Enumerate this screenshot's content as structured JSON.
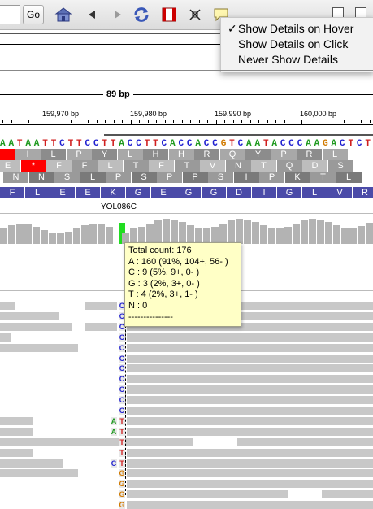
{
  "toolbar": {
    "go_label": "Go",
    "icons": [
      "home-icon",
      "back-icon",
      "forward-icon",
      "refresh-icon",
      "roi-icon",
      "resize-icon",
      "popup-text-icon",
      "region-navigator-icon"
    ]
  },
  "details_menu": {
    "items": [
      {
        "label": "Show Details on Hover",
        "checked": true,
        "check_mark": "✓"
      },
      {
        "label": "Show Details on Click",
        "checked": false
      },
      {
        "label": "Never Show Details",
        "checked": false
      }
    ]
  },
  "ruler": {
    "span_label": "89 bp",
    "ticks": [
      "159,970 bp",
      "159,980 bp",
      "159,990 bp",
      "160,000 bp"
    ]
  },
  "sequence": {
    "bases": [
      "A",
      "A",
      "T",
      "A",
      "A",
      "T",
      "T",
      "C",
      "T",
      "T",
      "C",
      "C",
      "T",
      "T",
      "A",
      "C",
      "C",
      "T",
      "T",
      "C",
      "A",
      "C",
      "C",
      "A",
      "C",
      "C",
      "G",
      "T",
      "C",
      "A",
      "A",
      "T",
      "A",
      "C",
      "C",
      "C",
      "A",
      "A",
      "G",
      "A",
      "C",
      "T",
      "C",
      "T"
    ]
  },
  "translation": {
    "frame1": [
      "",
      "I",
      "L",
      "P",
      "Y",
      "L",
      "H",
      "H",
      "R",
      "Q",
      "Y",
      "P",
      "R",
      "L"
    ],
    "frame2": [
      "E",
      "*",
      "F",
      "F",
      "L",
      "T",
      "F",
      "T",
      "V",
      "N",
      "T",
      "Q",
      "D",
      "S"
    ],
    "frame3": [
      "N",
      "N",
      "S",
      "L",
      "P",
      "S",
      "P",
      "P",
      "S",
      "I",
      "P",
      "K",
      "T",
      "L"
    ],
    "gene_aa": [
      "F",
      "L",
      "E",
      "E",
      "K",
      "G",
      "E",
      "G",
      "G",
      "D",
      "I",
      "G",
      "L",
      "V",
      "R"
    ]
  },
  "gene": {
    "name": "YOL086C"
  },
  "popup": {
    "lines": [
      "Total count: 176",
      "A : 160 (91%, 104+, 56- )",
      "C : 9 (5%, 9+, 0- )",
      "G : 3 (2%, 3+, 0- )",
      "T : 4 (2%, 3+, 1- )",
      "N : 0",
      "---------------"
    ]
  },
  "alignment": {
    "mismatch_bases_col1": [
      "C",
      "C",
      "C",
      "C",
      "C",
      "C",
      "C",
      "C",
      "C",
      "C",
      "C",
      "T",
      "T",
      "T",
      "T",
      "T",
      "G",
      "G",
      "G",
      "G"
    ],
    "mismatch_bases_col0": [
      "A",
      "A",
      "C"
    ]
  },
  "colors": {
    "A": "#1f9a1f",
    "C": "#1f1fd0",
    "G": "#d17a00",
    "T": "#d01f1f",
    "highlight_bar": "#22dd22",
    "popup_bg": "#ffffc6",
    "gene_bar": "#4b4ba8"
  }
}
